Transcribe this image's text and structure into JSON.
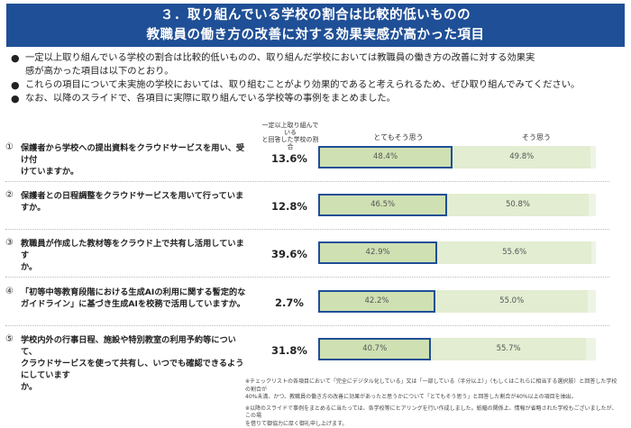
{
  "title": {
    "line1": "３．取り組んでいる学校の割合は比較的低いものの",
    "line2": "教職員の働き方の改善に対する効果実感が高かった項目"
  },
  "bullets": [
    {
      "line1": "一定以上取り組んでいる学校の割合は比較的低いものの、取り組んだ学校においては教職員の働き方の改善に対する効果実",
      "line2": "感が高かった項目は以下のとおり。"
    },
    {
      "line1": "これらの項目について未実施の学校においては、取り組むことがより効果的であると考えられるため、ぜひ取り組んでみてください。",
      "line2": ""
    },
    {
      "line1": "なお、以降のスライドで、各項目に実際に取り組んでいる学校等の事例をまとめました。",
      "line2": ""
    }
  ],
  "columns": {
    "rate_line1": "一定以上取り組んでいる",
    "rate_line2": "と回答した学校の割合",
    "very": "とてもそう思う",
    "somewhat": "そう思う"
  },
  "items": [
    {
      "num": "①",
      "line1": "保護者から学校への提出資料をクラウドサービスを用い、受け付",
      "line2": "けていますか。",
      "rate": "13.6%",
      "very": "48.4%",
      "very_value": 48.4,
      "somewhat": "49.8%",
      "somewhat_value": 49.8
    },
    {
      "num": "②",
      "line1": "保護者との日程調整をクラウドサービスを用いて行っていますか。",
      "line2": "",
      "rate": "12.8%",
      "very": "46.5%",
      "very_value": 46.5,
      "somewhat": "50.8%",
      "somewhat_value": 50.8
    },
    {
      "num": "③",
      "line1": "教職員が作成した教材等をクラウド上で共有し活用しています",
      "line2": "か。",
      "rate": "39.6%",
      "very": "42.9%",
      "very_value": 42.9,
      "somewhat": "55.6%",
      "somewhat_value": 55.6
    },
    {
      "num": "④",
      "line1": "「初等中等教育段階における生成AIの利用に関する暫定的な",
      "line2": "ガイドライン」に基づき生成AIを校務で活用していますか。",
      "rate": "2.7%",
      "very": "42.2%",
      "very_value": 42.2,
      "somewhat": "55.0%",
      "somewhat_value": 55.0
    },
    {
      "num": "⑤",
      "line1": "学校内外の行事日程、施設や特別教室の利用予約等について、",
      "line2": "クラウドサービスを使って共有し、いつでも確認できるようにしています",
      "line3": "か。",
      "rate": "31.8%",
      "very": "40.7%",
      "very_value": 40.7,
      "somewhat": "55.7%",
      "somewhat_value": 55.7
    }
  ],
  "footnotes": [
    "※チェックリストの各項目において「完全にデジタル化している」又は「一部している（半分以上）」（もしくはこれらに相当する選択肢）と回答した学校の割合が",
    "40%未満、かつ、教職員の働き方の改善に効果があったと思うかについて「とてもそう思う」と回答した割合が40%以上の項目を抽出。",
    "※以降のスライドで事例をまとめるに当たっては、各学校等にヒアリングを行い作成しました。紙幅の関係上、情報が省略された学校もございましたが、この場",
    "を借りて御協力に厚く御礼申し上げます。"
  ]
}
